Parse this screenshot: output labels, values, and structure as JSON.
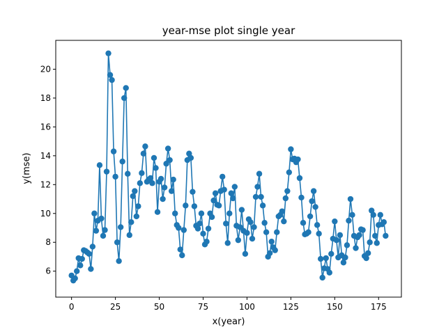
{
  "chart_data": {
    "type": "line",
    "title": "year-mse plot single year",
    "xlabel": "x(year)",
    "ylabel": "y(mse)",
    "xlim": [
      -9,
      188
    ],
    "ylim": [
      4.2,
      22.0
    ],
    "xticks": [
      0,
      25,
      50,
      75,
      100,
      125,
      150,
      175
    ],
    "yticks": [
      6,
      8,
      10,
      12,
      14,
      16,
      18,
      20
    ],
    "grid": false,
    "markers": "circle",
    "color": "#1f77b4",
    "series": [
      {
        "x": [
          0,
          1,
          2,
          3,
          4,
          5,
          6,
          7,
          8,
          9,
          10,
          11,
          12,
          13,
          14,
          15,
          16,
          17,
          18,
          19,
          20,
          21,
          22,
          23,
          24,
          25,
          26,
          27,
          28,
          29,
          30,
          31,
          32,
          33,
          34,
          35,
          36,
          37,
          38,
          39,
          40,
          41,
          42,
          43,
          44,
          45,
          46,
          47,
          48,
          49,
          50,
          51,
          52,
          53,
          54,
          55,
          56,
          57,
          58,
          59,
          60,
          61,
          62,
          63,
          64,
          65,
          66,
          67,
          68,
          69,
          70,
          71,
          72,
          73,
          74,
          75,
          76,
          77,
          78,
          79,
          80,
          81,
          82,
          83,
          84,
          85,
          86,
          87,
          88,
          89,
          90,
          91,
          92,
          93,
          94,
          95,
          96,
          97,
          98,
          99,
          100,
          101,
          102,
          103,
          104,
          105,
          106,
          107,
          108,
          109,
          110,
          111,
          112,
          113,
          114,
          115,
          116,
          117,
          118,
          119,
          120,
          121,
          122,
          123,
          124,
          125,
          126,
          127,
          128,
          129,
          130,
          131,
          132,
          133,
          134,
          135,
          136,
          137,
          138,
          139,
          140,
          141,
          142,
          143,
          144,
          145,
          146,
          147,
          148,
          149,
          150,
          151,
          152,
          153,
          154,
          155,
          156,
          157,
          158,
          159,
          160,
          161,
          162,
          163,
          164,
          165,
          166,
          167,
          168,
          169,
          170,
          171,
          172,
          173,
          174,
          175,
          176,
          177,
          178,
          179
        ],
        "y": [
          5.7,
          5.35,
          5.5,
          6.0,
          6.9,
          6.4,
          6.85,
          7.45,
          7.4,
          7.3,
          7.2,
          6.15,
          7.7,
          10.0,
          8.8,
          9.5,
          13.35,
          9.65,
          8.45,
          8.85,
          12.9,
          21.1,
          19.6,
          19.25,
          14.3,
          12.55,
          8.0,
          6.7,
          9.05,
          13.6,
          18.0,
          18.7,
          12.75,
          8.5,
          9.4,
          11.2,
          11.55,
          9.8,
          10.5,
          12.1,
          12.8,
          14.15,
          14.65,
          12.2,
          12.35,
          12.45,
          12.1,
          13.85,
          13.15,
          10.1,
          12.2,
          12.4,
          11.0,
          11.8,
          13.45,
          14.5,
          13.7,
          11.55,
          12.35,
          10.0,
          9.2,
          9.0,
          7.5,
          7.1,
          8.85,
          10.55,
          13.7,
          14.15,
          13.85,
          11.5,
          10.5,
          9.15,
          8.95,
          9.3,
          10.0,
          8.6,
          7.85,
          8.05,
          8.95,
          10.0,
          9.75,
          10.9,
          11.4,
          10.6,
          10.55,
          11.55,
          12.55,
          11.65,
          9.3,
          7.95,
          10.0,
          11.4,
          11.05,
          11.85,
          9.15,
          8.15,
          9.05,
          10.25,
          8.8,
          7.2,
          8.65,
          9.6,
          9.4,
          8.25,
          9.05,
          11.15,
          11.85,
          12.75,
          11.15,
          10.55,
          9.35,
          8.7,
          7.0,
          7.25,
          8.05,
          7.65,
          7.45,
          8.7,
          9.8,
          9.9,
          10.15,
          9.45,
          11.05,
          11.55,
          12.85,
          14.45,
          13.75,
          13.8,
          13.55,
          13.75,
          12.45,
          11.1,
          9.35,
          8.55,
          8.6,
          8.7,
          9.8,
          10.85,
          11.55,
          10.45,
          9.2,
          8.6,
          6.85,
          5.55,
          6.2,
          6.9,
          6.15,
          5.9,
          7.2,
          8.25,
          9.45,
          8.15,
          6.95,
          8.5,
          7.1,
          6.6,
          6.95,
          7.8,
          9.5,
          11.0,
          9.9,
          8.45,
          7.6,
          8.35,
          8.5,
          8.9,
          8.85,
          7.05,
          6.9,
          7.25,
          8.0,
          10.2,
          9.9,
          8.45,
          7.95,
          9.2,
          9.9,
          9.25,
          9.4,
          8.45
        ]
      }
    ]
  }
}
